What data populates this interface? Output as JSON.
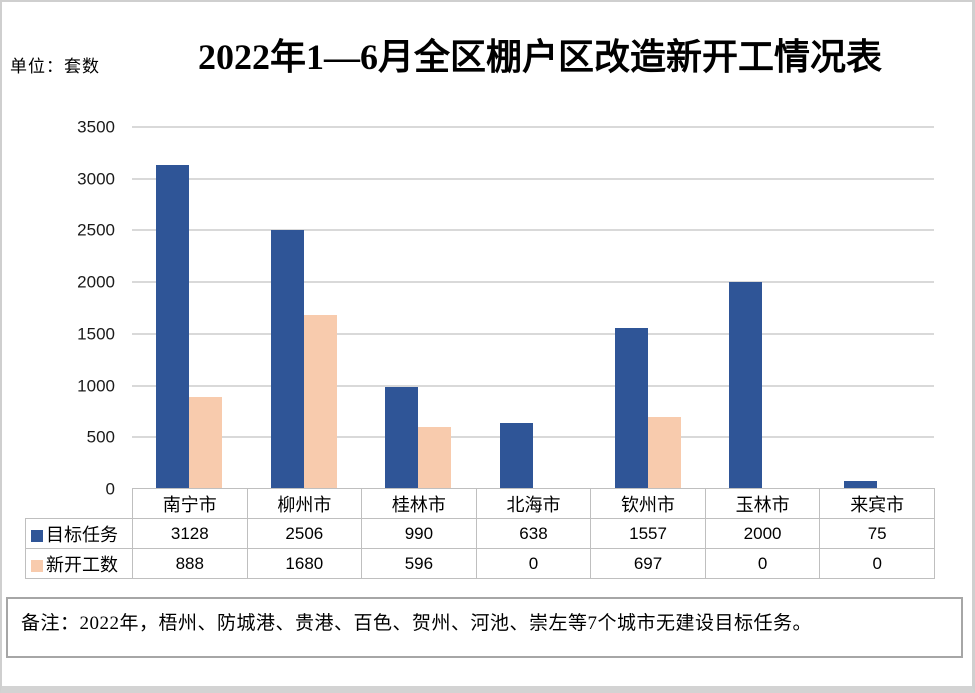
{
  "header": {
    "unit_label": "单位：套数",
    "title": "2022年1—6月全区棚户区改造新开工情况表"
  },
  "note": {
    "text": "备注：2022年，梧州、防城港、贵港、百色、贺州、河池、崇左等7个城市无建设目标任务。"
  },
  "chart_data": {
    "type": "bar",
    "title": "2022年1—6月全区棚户区改造新开工情况表",
    "unit_label": "单位：套数",
    "categories": [
      "南宁市",
      "柳州市",
      "桂林市",
      "北海市",
      "钦州市",
      "玉林市",
      "来宾市"
    ],
    "series": [
      {
        "key": "target-tasks",
        "name": "目标任务",
        "color": "#2F5597",
        "values": [
          3128,
          2506,
          990,
          638,
          1557,
          2000,
          75
        ]
      },
      {
        "key": "new-starts",
        "name": "新开工数",
        "color": "#F8CBAD",
        "values": [
          888,
          1680,
          596,
          0,
          697,
          0,
          0
        ]
      }
    ],
    "ylim": [
      0,
      3500
    ],
    "yticks": [
      0,
      500,
      1000,
      1500,
      2000,
      2500,
      3000,
      3500
    ],
    "grid": true,
    "legend_position": "data-table-row-labels",
    "data_table_shown": true
  },
  "colors": {
    "series_target": "#2F5597",
    "series_new_starts": "#F8CBAD",
    "gridline": "#D9D9D9",
    "table_border": "#BFBFBF",
    "note_border": "#A6A6A6",
    "frame_border": "#CFCFCF",
    "axis_text": "#1A1A1A",
    "text": "#000000"
  }
}
